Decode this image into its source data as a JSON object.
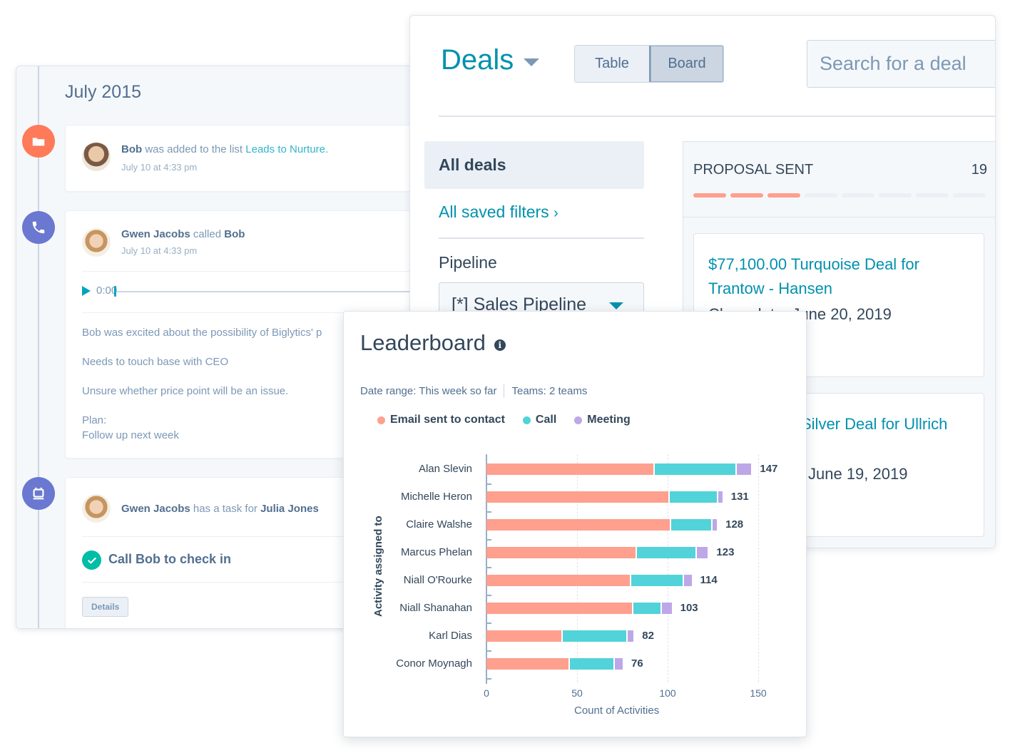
{
  "timeline": {
    "month": "July 2015",
    "events": [
      {
        "type": "list",
        "icon": "folder-icon",
        "icon_color": "#ff7a59",
        "actor": "Bob",
        "action": "was added to the list",
        "link": "Leads to Nurture.",
        "time": "July 10 at 4:33 pm"
      },
      {
        "type": "call",
        "icon": "phone-icon",
        "icon_color": "#6a78d1",
        "actor": "Gwen Jacobs",
        "action": "called",
        "target": "Bob",
        "time": "July 10 at 4:33 pm",
        "audio_time": "0:00",
        "notes": [
          "Bob was excited about the possibility of Biglytics' p",
          "Needs to touch base with CEO",
          "Unsure whether price point will be an issue.",
          "Plan:",
          "Follow up next week"
        ]
      },
      {
        "type": "task",
        "icon": "calendar-icon",
        "icon_color": "#6a78d1",
        "actor": "Gwen Jacobs",
        "action": "has a task for",
        "target": "Julia Jones",
        "task_title": "Call Bob  to check in",
        "details_label": "Details"
      }
    ]
  },
  "deals": {
    "title": "Deals",
    "view_options": [
      "Table",
      "Board"
    ],
    "active_view": "Board",
    "search_placeholder": "Search for a deal",
    "filters": {
      "all_deals": "All deals",
      "saved_filters": "All saved filters",
      "pipeline_label": "Pipeline",
      "pipeline_value": "[*] Sales Pipeline"
    },
    "stage": {
      "name": "PROPOSAL SENT",
      "count": "19",
      "progress_total": 8,
      "progress_done": 3,
      "cards": [
        {
          "name_line1": "$77,100.00 Turquoise Deal for",
          "name_line2": "Trantow - Hansen",
          "close_date": "Close date: June 20, 2019"
        },
        {
          "name_line1": "Silver Deal for Ullrich",
          "close_date": "June 19, 2019"
        }
      ]
    }
  },
  "leaderboard": {
    "title": "Leaderboard",
    "date_range": "Date range: This week so far",
    "teams": "Teams: 2 teams",
    "colors": {
      "email": "#ff9f8e",
      "call": "#51d3d9",
      "meeting": "#bea7e8"
    }
  },
  "chart_data": {
    "type": "bar",
    "orientation": "horizontal",
    "stacked": true,
    "title": "Leaderboard",
    "xlabel": "Count of Activities",
    "ylabel": "Activity assigned to",
    "xlim": [
      0,
      150
    ],
    "x_ticks": [
      "0",
      "50",
      "100",
      "150"
    ],
    "grid": true,
    "legend_position": "top",
    "categories": [
      "Alan Slevin",
      "Michelle Heron",
      "Claire Walshe",
      "Marcus Phelan",
      "Niall O'Rourke",
      "Niall Shanahan",
      "Karl Dias",
      "Conor Moynagh"
    ],
    "series": [
      {
        "name": "Email sent to contact",
        "color": "#ff9f8e",
        "values": [
          93,
          101,
          102,
          83,
          80,
          81,
          42,
          46
        ]
      },
      {
        "name": "Call",
        "color": "#51d3d9",
        "values": [
          45,
          27,
          23,
          33,
          29,
          16,
          36,
          25
        ]
      },
      {
        "name": "Meeting",
        "color": "#bea7e8",
        "values": [
          9,
          3,
          3,
          7,
          5,
          6,
          4,
          5
        ]
      }
    ],
    "totals": [
      147,
      131,
      128,
      123,
      114,
      103,
      82,
      76
    ]
  }
}
